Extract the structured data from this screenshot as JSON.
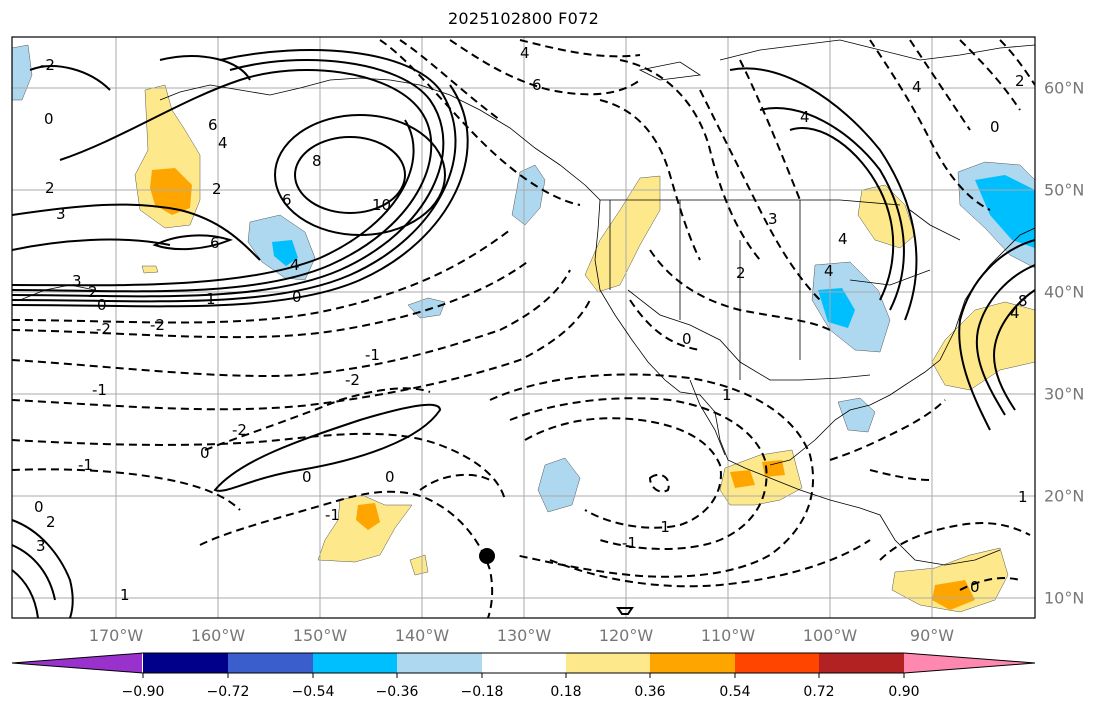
{
  "title": "2025102800 F072",
  "longitude_labels": [
    "170°W",
    "160°W",
    "150°W",
    "140°W",
    "130°W",
    "120°W",
    "110°W",
    "100°W",
    "90°W"
  ],
  "latitude_labels": [
    "60°N",
    "50°N",
    "40°N",
    "30°N",
    "20°N",
    "10°N"
  ],
  "colorbar": {
    "ticks": [
      "−0.90",
      "−0.72",
      "−0.54",
      "−0.36",
      "−0.18",
      "0.18",
      "0.36",
      "0.54",
      "0.72",
      "0.90"
    ],
    "colors": [
      "#9932cc",
      "#00008b",
      "#3a5fcd",
      "#00bfff",
      "#add8f0",
      "#ffffff",
      "#fde98b",
      "#ffa500",
      "#ff4500",
      "#b22222",
      "#ff88b0"
    ]
  },
  "contour_labels": [
    "-2",
    "-1",
    "0",
    "1",
    "2",
    "3",
    "4",
    "6",
    "8",
    "10"
  ],
  "colors": {
    "light_blue": "#add8f0",
    "blue": "#00bfff",
    "yellow": "#fde98b",
    "orange": "#ffa500",
    "grid": "#aaaaaa",
    "axis_label": "#777777"
  }
}
